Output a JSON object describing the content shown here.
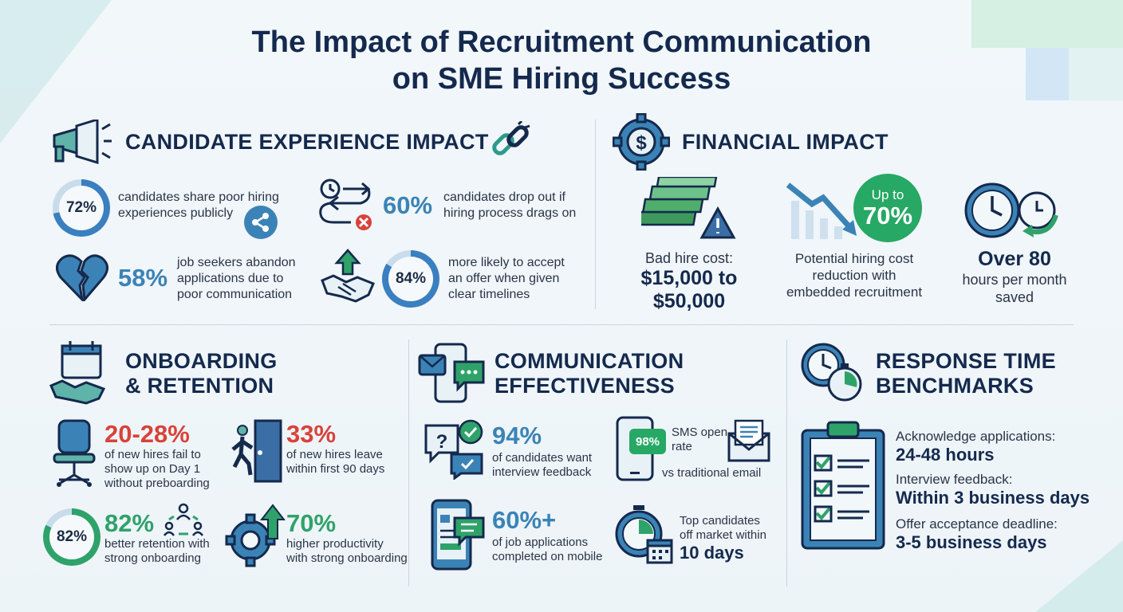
{
  "title": {
    "line1": "The Impact of Recruitment Communication",
    "line2": "on SME Hiring Success"
  },
  "candidate": {
    "heading": "CANDIDATE EXPERIENCE IMPACT",
    "items": [
      {
        "stat": "72%",
        "text1": "candidates share poor hiring",
        "text2": "experiences publicly"
      },
      {
        "stat": "60%",
        "text1": "candidates drop out if",
        "text2": "hiring process drags on"
      },
      {
        "stat": "58%",
        "text1": "job seekers abandon",
        "text2": "applications due to",
        "text3": "poor communication"
      },
      {
        "stat": "84%",
        "text1": "more likely to accept",
        "text2": "an offer when given",
        "text3": "clear timelines"
      }
    ]
  },
  "financial": {
    "heading": "FINANCIAL IMPACT",
    "bad_hire": {
      "label": "Bad hire cost:",
      "value1": "$15,000 to",
      "value2": "$50,000"
    },
    "reduction": {
      "badge_top": "Up to",
      "badge_value": "70%",
      "text1": "Potential hiring cost",
      "text2": "reduction with",
      "text3": "embedded recruitment"
    },
    "hours": {
      "value": "Over 80",
      "text1": "hours per month",
      "text2": "saved"
    }
  },
  "onboarding": {
    "heading1": "ONBOARDING",
    "heading2": "& RETENTION",
    "items": [
      {
        "stat": "20-28%",
        "text1": "of new hires fail to",
        "text2": "show up on Day 1",
        "text3": "without preboarding"
      },
      {
        "stat": "33%",
        "text1": "of new hires leave",
        "text2": "within first 90 days"
      },
      {
        "ring": "82%",
        "stat": "82%",
        "text1": "better retention with",
        "text2": "strong onboarding"
      },
      {
        "stat": "70%",
        "text1": "higher productivity",
        "text2": "with strong onboarding"
      }
    ]
  },
  "communication": {
    "heading1": "COMMUNICATION",
    "heading2": "EFFECTIVENESS",
    "items": [
      {
        "stat": "94%",
        "text1": "of candidates want",
        "text2": "interview feedback"
      },
      {
        "badge": "98%",
        "text1": "SMS open",
        "text2": "rate",
        "text3": "vs traditional email"
      },
      {
        "stat": "60%+",
        "text1": "of job applications",
        "text2": "completed on mobile"
      },
      {
        "text1": "Top candidates",
        "text2": "off market within",
        "value": "10 days"
      }
    ]
  },
  "response": {
    "heading1": "RESPONSE TIME",
    "heading2": "BENCHMARKS",
    "items": [
      {
        "label": "Acknowledge applications:",
        "value": "24-48 hours"
      },
      {
        "label": "Interview feedback:",
        "value": "Within 3 business days"
      },
      {
        "label": "Offer acceptance deadline:",
        "value": "3-5 business days"
      }
    ]
  },
  "rings": {
    "r72": 0.72,
    "r84": 0.84,
    "r82": 0.82
  },
  "colors": {
    "navy": "#14294d",
    "blue": "#3b83b6",
    "red": "#d9423a",
    "green": "#2fa26a",
    "ring_blue": "#3a7fc0",
    "ring_track": "#c8dceb"
  }
}
